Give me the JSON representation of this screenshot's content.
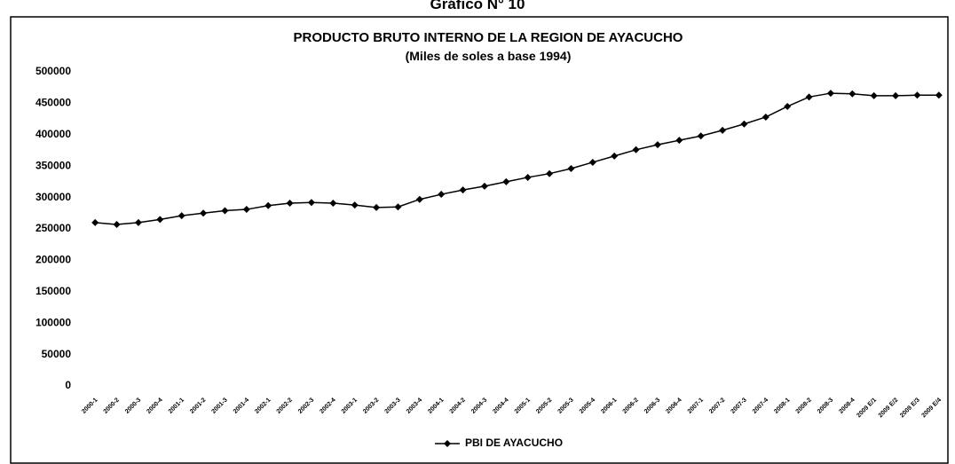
{
  "header": "Gráfico N° 10",
  "chart_data": {
    "type": "line",
    "title": "PRODUCTO BRUTO INTERNO DE LA REGION DE AYACUCHO",
    "subtitle": "(Miles de soles a base 1994)",
    "categories": [
      "2000-1",
      "2000-2",
      "2000-3",
      "2000-4",
      "2001-1",
      "2001-2",
      "2001-3",
      "2001-4",
      "2002-1",
      "2002-2",
      "2002-3",
      "2002-4",
      "2003-1",
      "2003-2",
      "2003-3",
      "2003-4",
      "2004-1",
      "2004-2",
      "2004-3",
      "2004-4",
      "2005-1",
      "2005-2",
      "2005-3",
      "2005-4",
      "2006-1",
      "2006-2",
      "2006-3",
      "2006-4",
      "2007-1",
      "2007-2",
      "2007-3",
      "2007-4",
      "2008-1",
      "2008-2",
      "2008-3",
      "2008-4",
      "2009 E/1",
      "2009 E/2",
      "2009 E/3",
      "2009 E/4"
    ],
    "series": [
      {
        "name": "PBI DE AYACUCHO",
        "color": "#000000",
        "values": [
          260000,
          257000,
          260000,
          265000,
          271000,
          275000,
          279000,
          281000,
          287000,
          291000,
          292000,
          291000,
          288000,
          284000,
          285000,
          297000,
          305000,
          312000,
          318000,
          325000,
          332000,
          338000,
          346000,
          356000,
          366000,
          376000,
          384000,
          391000,
          398000,
          407000,
          417000,
          428000,
          445000,
          460000,
          466000,
          465000,
          462000,
          462000,
          463000,
          463000
        ]
      }
    ],
    "ylim": [
      0,
      500000
    ],
    "yticks": [
      0,
      50000,
      100000,
      150000,
      200000,
      250000,
      300000,
      350000,
      400000,
      450000,
      500000
    ],
    "legend": "bottom"
  }
}
